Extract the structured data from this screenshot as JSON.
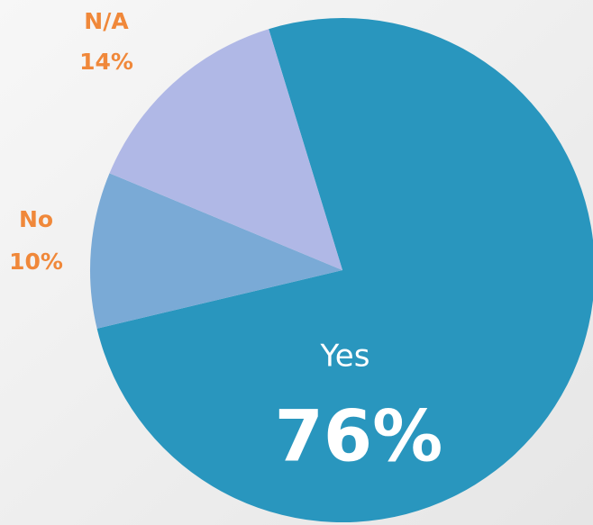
{
  "chart_data": {
    "type": "pie",
    "categories": [
      "Yes",
      "No",
      "N/A"
    ],
    "values": [
      76,
      10,
      14
    ],
    "value_labels": [
      "76%",
      "10%",
      "14%"
    ],
    "colors": [
      "#2996be",
      "#7aaad6",
      "#b0b8e6"
    ]
  }
}
